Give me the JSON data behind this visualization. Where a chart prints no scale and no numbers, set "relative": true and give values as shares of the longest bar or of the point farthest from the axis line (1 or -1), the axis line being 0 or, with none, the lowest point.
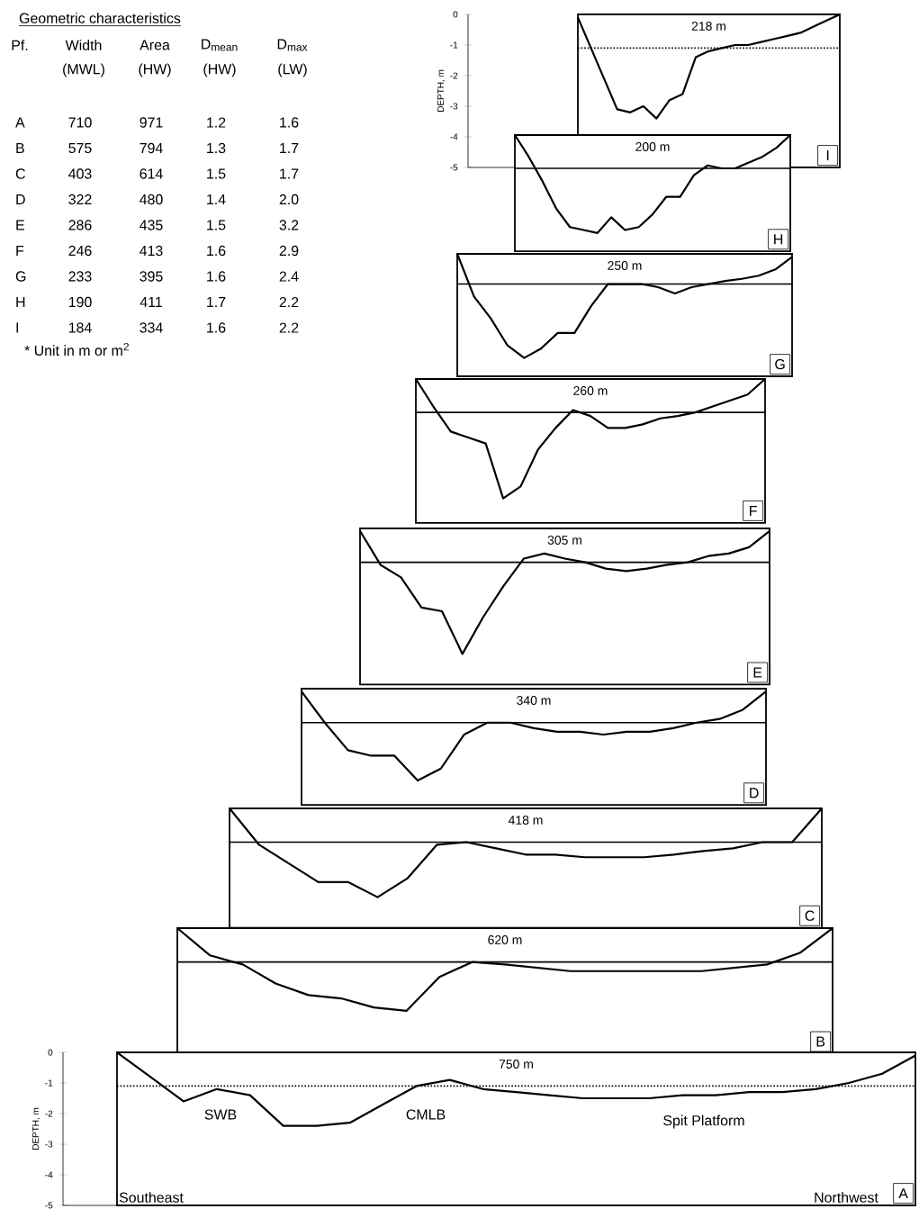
{
  "chart_data": [
    {
      "type": "other",
      "title": "Geometric characteristics",
      "annotations": [
        "Pf.",
        "Width",
        "Area",
        "D$_{mean}$",
        "D$_{max}$",
        "(MWL)",
        "(HW)",
        "(HW)",
        "(LW)",
        "A",
        "710",
        "971",
        "1.2",
        "1.6",
        "B",
        "575",
        "794",
        "1.3",
        "1.7",
        "C",
        "403",
        "614",
        "1.5",
        "1.7",
        "D",
        "322",
        "480",
        "1.4",
        "2.0",
        "E",
        "286",
        "435",
        "1.5",
        "3.2",
        "F",
        "246",
        "413",
        "1.6",
        "2.9",
        "G",
        "233",
        "395",
        "1.6",
        "2.4",
        "H",
        "190",
        "411",
        "1.7",
        "2.2",
        "I",
        "184",
        "334",
        "1.6",
        "2.2",
        "* Unit in m or m$^{2}$"
      ]
    },
    {
      "type": "line",
      "title": "I",
      "annotations": [
        "218 m"
      ],
      "ylabel": "DEPTH, m",
      "ylim": [
        -5,
        0
      ],
      "yticks": [
        0,
        -1,
        -2,
        -3,
        -4,
        -5
      ],
      "categories": [
        null,
        null,
        null,
        null,
        null,
        null,
        null,
        null,
        null,
        null,
        null,
        null,
        null,
        null,
        null,
        null,
        null,
        null,
        null,
        null,
        null
      ],
      "series": [
        {
          "color": "#000000",
          "values": [
            -0.1,
            -1.1,
            -2.1,
            -3.1,
            -3.2,
            -3.0,
            -3.4,
            -2.8,
            -2.6,
            -1.4,
            -1.2,
            -1.1,
            -1.0,
            -1.0,
            -0.9,
            -0.8,
            -0.7,
            -0.6,
            -0.4,
            -0.2,
            0
          ]
        }
      ],
      "ref_lines": [
        {
          "axis": "y",
          "value": -1.1,
          "line_style": "dotted"
        }
      ]
    },
    {
      "type": "line",
      "title": "H",
      "annotations": [
        "200 m"
      ],
      "relative": true,
      "categories": [
        null,
        null,
        null,
        null,
        null,
        null,
        null,
        null,
        null,
        null,
        null,
        null,
        null,
        null,
        null,
        null,
        null,
        null,
        null,
        null,
        null
      ],
      "series": [
        {
          "color": "#000000",
          "values": [
            0,
            -0.22,
            -0.47,
            -0.75,
            -0.94,
            -0.97,
            -1,
            -0.84,
            -0.97,
            -0.94,
            -0.81,
            -0.63,
            -0.63,
            -0.41,
            -0.31,
            -0.34,
            -0.34,
            -0.28,
            -0.22,
            -0.13,
            0
          ]
        }
      ],
      "ref_lines": [
        {
          "axis": "y",
          "value": -0.34,
          "line_style": "solid"
        }
      ]
    },
    {
      "type": "line",
      "title": "G",
      "annotations": [
        "250 m"
      ],
      "relative": true,
      "categories": [
        null,
        null,
        null,
        null,
        null,
        null,
        null,
        null,
        null,
        null,
        null,
        null,
        null,
        null,
        null,
        null,
        null,
        null,
        null,
        null,
        null
      ],
      "series": [
        {
          "color": "#000000",
          "values": [
            0,
            -0.41,
            -0.62,
            -0.88,
            -1,
            -0.91,
            -0.76,
            -0.76,
            -0.5,
            -0.29,
            -0.29,
            -0.29,
            -0.32,
            -0.38,
            -0.32,
            -0.29,
            -0.26,
            -0.24,
            -0.21,
            -0.15,
            -0.03
          ]
        }
      ],
      "ref_lines": [
        {
          "axis": "y",
          "value": -0.29,
          "line_style": "solid"
        }
      ]
    },
    {
      "type": "line",
      "title": "F",
      "annotations": [
        "260 m"
      ],
      "relative": true,
      "categories": [
        null,
        null,
        null,
        null,
        null,
        null,
        null,
        null,
        null,
        null,
        null,
        null,
        null,
        null,
        null,
        null,
        null,
        null,
        null,
        null,
        null
      ],
      "series": [
        {
          "color": "#000000",
          "values": [
            0,
            -0.23,
            -0.44,
            -0.49,
            -0.54,
            -1,
            -0.9,
            -0.59,
            -0.41,
            -0.26,
            -0.31,
            -0.41,
            -0.41,
            -0.38,
            -0.33,
            -0.31,
            -0.28,
            -0.23,
            -0.18,
            -0.13,
            0
          ]
        }
      ],
      "ref_lines": [
        {
          "axis": "y",
          "value": -0.28,
          "line_style": "solid"
        }
      ]
    },
    {
      "type": "line",
      "title": "E",
      "annotations": [
        "305 m"
      ],
      "relative": true,
      "categories": [
        null,
        null,
        null,
        null,
        null,
        null,
        null,
        null,
        null,
        null,
        null,
        null,
        null,
        null,
        null,
        null,
        null,
        null,
        null,
        null,
        null
      ],
      "series": [
        {
          "color": "#000000",
          "values": [
            -0.02,
            -0.29,
            -0.39,
            -0.63,
            -0.66,
            -1,
            -0.71,
            -0.46,
            -0.24,
            -0.2,
            -0.24,
            -0.27,
            -0.32,
            -0.34,
            -0.32,
            -0.29,
            -0.27,
            -0.22,
            -0.2,
            -0.15,
            -0.02
          ]
        }
      ],
      "ref_lines": [
        {
          "axis": "y",
          "value": -0.27,
          "line_style": "solid"
        }
      ]
    },
    {
      "type": "line",
      "title": "D",
      "annotations": [
        "340 m"
      ],
      "relative": true,
      "categories": [
        null,
        null,
        null,
        null,
        null,
        null,
        null,
        null,
        null,
        null,
        null,
        null,
        null,
        null,
        null,
        null,
        null,
        null,
        null,
        null,
        null
      ],
      "series": [
        {
          "color": "#000000",
          "values": [
            -0.03,
            -0.37,
            -0.67,
            -0.73,
            -0.73,
            -1,
            -0.87,
            -0.5,
            -0.37,
            -0.37,
            -0.43,
            -0.47,
            -0.47,
            -0.5,
            -0.47,
            -0.47,
            -0.43,
            -0.37,
            -0.33,
            -0.23,
            -0.03
          ]
        }
      ],
      "ref_lines": [
        {
          "axis": "y",
          "value": -0.37,
          "line_style": "solid"
        }
      ]
    },
    {
      "type": "line",
      "title": "C",
      "annotations": [
        "418 m"
      ],
      "relative": true,
      "categories": [
        null,
        null,
        null,
        null,
        null,
        null,
        null,
        null,
        null,
        null,
        null,
        null,
        null,
        null,
        null,
        null,
        null,
        null,
        null,
        null,
        null
      ],
      "series": [
        {
          "color": "#000000",
          "values": [
            0,
            -0.41,
            -0.62,
            -0.83,
            -0.83,
            -1,
            -0.79,
            -0.41,
            -0.38,
            -0.45,
            -0.52,
            -0.52,
            -0.55,
            -0.55,
            -0.55,
            -0.52,
            -0.48,
            -0.45,
            -0.38,
            -0.38,
            0
          ]
        }
      ],
      "ref_lines": [
        {
          "axis": "y",
          "value": -0.38,
          "line_style": "solid"
        }
      ]
    },
    {
      "type": "line",
      "title": "B",
      "annotations": [
        "620 m"
      ],
      "relative": true,
      "categories": [
        null,
        null,
        null,
        null,
        null,
        null,
        null,
        null,
        null,
        null,
        null,
        null,
        null,
        null,
        null,
        null,
        null,
        null,
        null,
        null,
        null
      ],
      "series": [
        {
          "color": "#000000",
          "values": [
            0,
            -0.33,
            -0.44,
            -0.67,
            -0.81,
            -0.85,
            -0.96,
            -1,
            -0.59,
            -0.41,
            -0.44,
            -0.48,
            -0.52,
            -0.52,
            -0.52,
            -0.52,
            -0.52,
            -0.48,
            -0.44,
            -0.3,
            0
          ]
        }
      ],
      "ref_lines": [
        {
          "axis": "y",
          "value": -0.41,
          "line_style": "solid"
        }
      ]
    },
    {
      "type": "line",
      "title": "A",
      "annotations": [
        "750 m",
        "SWB",
        "CMLB",
        "Spit Platform",
        "Southeast",
        "Northwest"
      ],
      "ylabel": "DEPTH, m",
      "ylim": [
        -5,
        0
      ],
      "yticks": [
        0,
        -1,
        -2,
        -3,
        -4,
        -5
      ],
      "categories": [
        null,
        null,
        null,
        null,
        null,
        null,
        null,
        null,
        null,
        null,
        null,
        null,
        null,
        null,
        null,
        null,
        null,
        null,
        null,
        null,
        null,
        null,
        null,
        null,
        null
      ],
      "series": [
        {
          "color": "#000000",
          "values": [
            0,
            -0.8,
            -1.6,
            -1.2,
            -1.4,
            -2.4,
            -2.4,
            -2.3,
            -1.7,
            -1.1,
            -0.9,
            -1.2,
            -1.3,
            -1.4,
            -1.5,
            -1.5,
            -1.5,
            -1.4,
            -1.4,
            -1.3,
            -1.3,
            -1.2,
            -1.0,
            -0.7,
            -0.1
          ]
        }
      ],
      "ref_lines": [
        {
          "axis": "y",
          "value": -1.1,
          "line_style": "dotted"
        }
      ]
    }
  ]
}
